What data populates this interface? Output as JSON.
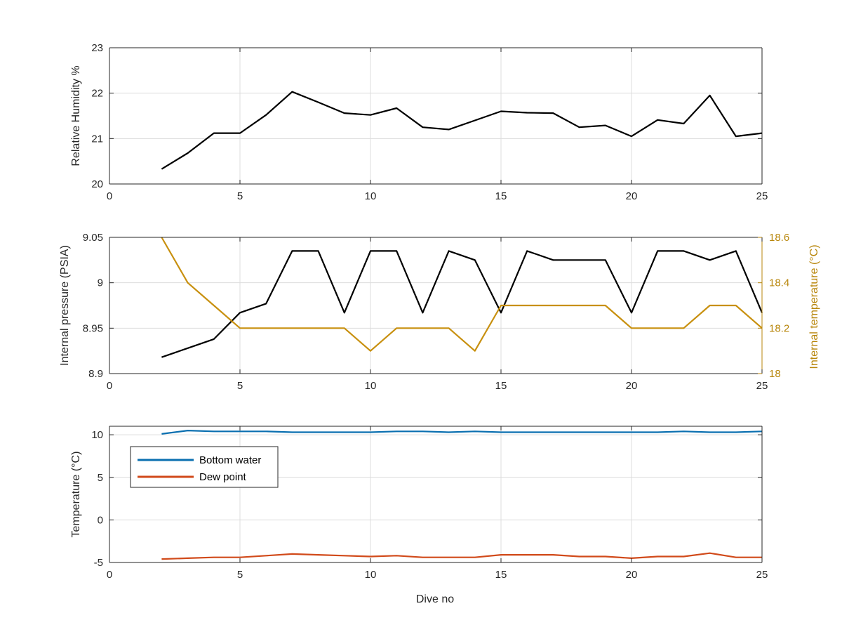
{
  "colors": {
    "black_line": "#000000",
    "temperature_line": "#c8900f",
    "temperature_axis": "#b8860b",
    "bottom_water": "#0a6fb0",
    "dew_point": "#d14a1a",
    "grid": "#dcdcdc",
    "axes": "#262626"
  },
  "chart_data": [
    {
      "type": "line",
      "xlabel": "",
      "ylabel": "Relative Humidity %",
      "xlim": [
        0,
        25
      ],
      "ylim": [
        20,
        23
      ],
      "xticks": [
        "0",
        "5",
        "10",
        "15",
        "20",
        "25"
      ],
      "yticks": [
        "20",
        "21",
        "22",
        "23"
      ],
      "grid": true,
      "x": [
        2,
        3,
        4,
        5,
        6,
        7,
        8,
        9,
        10,
        11,
        12,
        13,
        14,
        15,
        16,
        17,
        18,
        19,
        20,
        21,
        22,
        23,
        24,
        25
      ],
      "series": [
        {
          "values": [
            20.33,
            20.68,
            21.12,
            21.12,
            21.52,
            22.03,
            21.8,
            21.56,
            21.52,
            21.67,
            21.25,
            21.2,
            21.4,
            21.6,
            21.57,
            21.56,
            21.25,
            21.29,
            21.05,
            21.41,
            21.33,
            21.95,
            21.05,
            21.12
          ]
        }
      ]
    },
    {
      "type": "line",
      "xlabel": "",
      "ylabel": "Internal pressure (PSIA)",
      "y2label": "Internal temperature (°C)",
      "xlim": [
        0,
        25
      ],
      "ylim": [
        8.9,
        9.05
      ],
      "y2lim": [
        18,
        18.6
      ],
      "xticks": [
        "0",
        "5",
        "10",
        "15",
        "20",
        "25"
      ],
      "yticks": [
        "8.9",
        "8.95",
        "9",
        "9.05"
      ],
      "y2ticks": [
        "18",
        "18.2",
        "18.4",
        "18.6"
      ],
      "grid": true,
      "x": [
        2,
        3,
        4,
        5,
        6,
        7,
        8,
        9,
        10,
        11,
        12,
        13,
        14,
        15,
        16,
        17,
        18,
        19,
        20,
        21,
        22,
        23,
        24,
        25
      ],
      "series": [
        {
          "axis": "left",
          "values": [
            8.918,
            8.928,
            8.938,
            8.967,
            8.977,
            9.035,
            9.035,
            8.967,
            9.035,
            9.035,
            8.967,
            9.035,
            9.025,
            8.967,
            9.035,
            9.025,
            9.025,
            9.025,
            8.967,
            9.035,
            9.035,
            9.025,
            9.035,
            8.967
          ]
        },
        {
          "axis": "right",
          "values": [
            18.6,
            18.4,
            18.3,
            18.2,
            18.2,
            18.2,
            18.2,
            18.2,
            18.1,
            18.2,
            18.2,
            18.2,
            18.1,
            18.3,
            18.3,
            18.3,
            18.3,
            18.3,
            18.2,
            18.2,
            18.2,
            18.3,
            18.3,
            18.2
          ]
        }
      ]
    },
    {
      "type": "line",
      "xlabel": "Dive no",
      "ylabel": "Temperature (°C)",
      "xlim": [
        0,
        25
      ],
      "ylim": [
        -5,
        11
      ],
      "xticks": [
        "0",
        "5",
        "10",
        "15",
        "20",
        "25"
      ],
      "yticks": [
        "-5",
        "0",
        "5",
        "10"
      ],
      "grid": true,
      "legend": "upper-left",
      "x": [
        2,
        3,
        4,
        5,
        6,
        7,
        8,
        9,
        10,
        11,
        12,
        13,
        14,
        15,
        16,
        17,
        18,
        19,
        20,
        21,
        22,
        23,
        24,
        25
      ],
      "series": [
        {
          "name": "Bottom water",
          "values": [
            10.1,
            10.5,
            10.4,
            10.4,
            10.4,
            10.3,
            10.3,
            10.3,
            10.3,
            10.4,
            10.4,
            10.3,
            10.4,
            10.3,
            10.3,
            10.3,
            10.3,
            10.3,
            10.3,
            10.3,
            10.4,
            10.3,
            10.3,
            10.4
          ]
        },
        {
          "name": "Dew point",
          "values": [
            -4.6,
            -4.5,
            -4.4,
            -4.4,
            -4.2,
            -4.0,
            -4.1,
            -4.2,
            -4.3,
            -4.2,
            -4.4,
            -4.4,
            -4.4,
            -4.1,
            -4.1,
            -4.1,
            -4.3,
            -4.3,
            -4.5,
            -4.3,
            -4.3,
            -3.9,
            -4.4,
            -4.4
          ]
        }
      ]
    }
  ]
}
